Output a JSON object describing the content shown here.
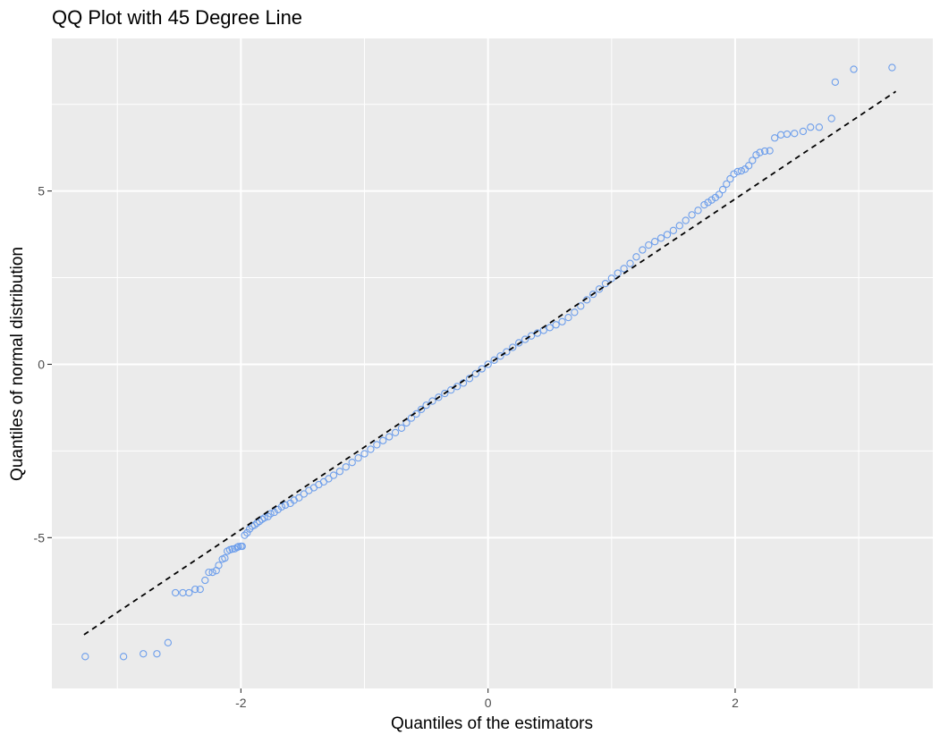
{
  "chart_data": {
    "type": "scatter",
    "title": "QQ Plot with 45 Degree Line",
    "xlabel": "Quantiles of the estimators",
    "ylabel": "Quantiles of normal distribution",
    "xlim": [
      -3.53,
      3.6
    ],
    "ylim": [
      -9.35,
      9.4
    ],
    "x_ticks": [
      -2,
      0,
      2
    ],
    "x_tick_labels": [
      "-2",
      "0",
      "2"
    ],
    "y_ticks": [
      -5,
      0,
      5
    ],
    "y_tick_labels": [
      "-5",
      "0",
      "5"
    ],
    "grid": true,
    "legend": "none",
    "reference_line": {
      "name": "45 degree line",
      "slope": 2.385,
      "intercept": 0,
      "x_range": [
        -3.27,
        3.3
      ],
      "style": "dashed",
      "color": "#000000"
    },
    "point_color": "#6d9eeb",
    "panel_color": "#ebebeb",
    "grid_color": "#ffffff",
    "series": [
      {
        "points": [
          [
            -3.26,
            -8.43
          ],
          [
            -2.95,
            -8.43
          ],
          [
            -2.79,
            -8.35
          ],
          [
            -2.68,
            -8.35
          ],
          [
            -2.59,
            -8.03
          ],
          [
            -2.53,
            -6.59
          ],
          [
            -2.47,
            -6.59
          ],
          [
            -2.42,
            -6.59
          ],
          [
            -2.37,
            -6.49
          ],
          [
            -2.33,
            -6.49
          ],
          [
            -2.29,
            -6.23
          ],
          [
            -2.26,
            -6.0
          ],
          [
            -2.23,
            -6.0
          ],
          [
            -2.2,
            -5.95
          ],
          [
            -2.18,
            -5.8
          ],
          [
            -2.15,
            -5.62
          ],
          [
            -2.13,
            -5.59
          ],
          [
            -2.11,
            -5.39
          ],
          [
            -2.09,
            -5.35
          ],
          [
            -2.07,
            -5.33
          ],
          [
            -2.05,
            -5.32
          ],
          [
            -2.03,
            -5.28
          ],
          [
            -2.02,
            -5.26
          ],
          [
            -2.0,
            -5.25
          ],
          [
            -1.99,
            -5.25
          ],
          [
            -1.97,
            -4.93
          ],
          [
            -1.95,
            -4.86
          ],
          [
            -1.93,
            -4.75
          ],
          [
            -1.91,
            -4.67
          ],
          [
            -1.89,
            -4.64
          ],
          [
            -1.87,
            -4.58
          ],
          [
            -1.85,
            -4.53
          ],
          [
            -1.83,
            -4.47
          ],
          [
            -1.81,
            -4.43
          ],
          [
            -1.78,
            -4.39
          ],
          [
            -1.76,
            -4.31
          ],
          [
            -1.73,
            -4.27
          ],
          [
            -1.7,
            -4.19
          ],
          [
            -1.67,
            -4.11
          ],
          [
            -1.64,
            -4.06
          ],
          [
            -1.6,
            -4.01
          ],
          [
            -1.57,
            -3.92
          ],
          [
            -1.53,
            -3.85
          ],
          [
            -1.49,
            -3.74
          ],
          [
            -1.45,
            -3.64
          ],
          [
            -1.41,
            -3.56
          ],
          [
            -1.37,
            -3.47
          ],
          [
            -1.33,
            -3.39
          ],
          [
            -1.29,
            -3.3
          ],
          [
            -1.25,
            -3.2
          ],
          [
            -1.2,
            -3.09
          ],
          [
            -1.15,
            -2.96
          ],
          [
            -1.1,
            -2.83
          ],
          [
            -1.05,
            -2.7
          ],
          [
            -1.0,
            -2.58
          ],
          [
            -0.95,
            -2.45
          ],
          [
            -0.9,
            -2.32
          ],
          [
            -0.85,
            -2.2
          ],
          [
            -0.8,
            -2.09
          ],
          [
            -0.75,
            -1.97
          ],
          [
            -0.7,
            -1.84
          ],
          [
            -0.66,
            -1.69
          ],
          [
            -0.62,
            -1.55
          ],
          [
            -0.58,
            -1.43
          ],
          [
            -0.54,
            -1.3
          ],
          [
            -0.5,
            -1.18
          ],
          [
            -0.45,
            -1.06
          ],
          [
            -0.4,
            -0.95
          ],
          [
            -0.35,
            -0.84
          ],
          [
            -0.3,
            -0.74
          ],
          [
            -0.25,
            -0.64
          ],
          [
            -0.2,
            -0.54
          ],
          [
            -0.15,
            -0.41
          ],
          [
            -0.1,
            -0.27
          ],
          [
            -0.05,
            -0.13
          ],
          [
            0.0,
            0.0
          ],
          [
            0.05,
            0.12
          ],
          [
            0.1,
            0.24
          ],
          [
            0.15,
            0.36
          ],
          [
            0.2,
            0.49
          ],
          [
            0.25,
            0.62
          ],
          [
            0.3,
            0.72
          ],
          [
            0.35,
            0.82
          ],
          [
            0.4,
            0.9
          ],
          [
            0.45,
            0.98
          ],
          [
            0.5,
            1.06
          ],
          [
            0.55,
            1.14
          ],
          [
            0.6,
            1.23
          ],
          [
            0.65,
            1.35
          ],
          [
            0.7,
            1.5
          ],
          [
            0.75,
            1.68
          ],
          [
            0.8,
            1.86
          ],
          [
            0.85,
            2.02
          ],
          [
            0.9,
            2.17
          ],
          [
            0.95,
            2.33
          ],
          [
            1.0,
            2.48
          ],
          [
            1.05,
            2.63
          ],
          [
            1.1,
            2.76
          ],
          [
            1.15,
            2.91
          ],
          [
            1.2,
            3.1
          ],
          [
            1.25,
            3.3
          ],
          [
            1.3,
            3.44
          ],
          [
            1.35,
            3.54
          ],
          [
            1.4,
            3.64
          ],
          [
            1.45,
            3.74
          ],
          [
            1.5,
            3.86
          ],
          [
            1.55,
            4.0
          ],
          [
            1.6,
            4.15
          ],
          [
            1.65,
            4.31
          ],
          [
            1.7,
            4.44
          ],
          [
            1.75,
            4.6
          ],
          [
            1.78,
            4.67
          ],
          [
            1.81,
            4.74
          ],
          [
            1.84,
            4.81
          ],
          [
            1.87,
            4.9
          ],
          [
            1.9,
            5.04
          ],
          [
            1.93,
            5.2
          ],
          [
            1.96,
            5.35
          ],
          [
            1.99,
            5.49
          ],
          [
            2.02,
            5.56
          ],
          [
            2.05,
            5.58
          ],
          [
            2.08,
            5.63
          ],
          [
            2.11,
            5.73
          ],
          [
            2.14,
            5.88
          ],
          [
            2.17,
            6.04
          ],
          [
            2.2,
            6.11
          ],
          [
            2.24,
            6.15
          ],
          [
            2.28,
            6.16
          ],
          [
            2.32,
            6.53
          ],
          [
            2.37,
            6.62
          ],
          [
            2.42,
            6.64
          ],
          [
            2.48,
            6.66
          ],
          [
            2.55,
            6.72
          ],
          [
            2.61,
            6.84
          ],
          [
            2.68,
            6.84
          ],
          [
            2.78,
            7.09
          ],
          [
            2.81,
            8.14
          ],
          [
            2.96,
            8.51
          ],
          [
            3.27,
            8.56
          ]
        ]
      }
    ]
  }
}
